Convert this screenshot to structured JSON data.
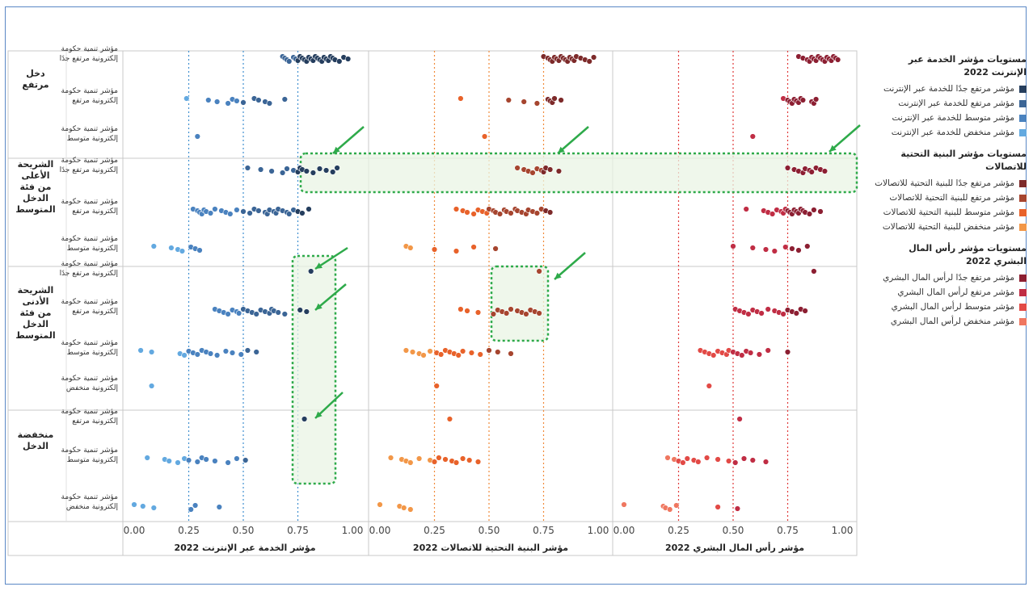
{
  "chart_data": {
    "type": "scatter",
    "x_ticks": [
      "0.00",
      "0.25",
      "0.50",
      "0.75",
      "1.00"
    ],
    "reference_lines": [
      0.25,
      0.5,
      0.75
    ],
    "panels": [
      {
        "xlabel": "مؤشر الخدمة عبر الإنترنت 2022",
        "legend_group": 0,
        "ref_color": "#3f8fd0"
      },
      {
        "xlabel": "مؤشر البنية التحتية للاتصالات 2022",
        "legend_group": 1,
        "ref_color": "#f08a3a"
      },
      {
        "xlabel": "مؤشر رأس المال البشري 2022",
        "legend_group": 2,
        "ref_color": "#e03a3a"
      }
    ],
    "row_groups": [
      {
        "label_lines": [
          "دخل",
          "مرتفع"
        ],
        "rows": [
          {
            "label_lines": [
              "مؤشر تنمية حكومة",
              "إلكترونية مرتفع جدًا"
            ],
            "points": [
              [
                0.68,
                0.69,
                0.7,
                0.71,
                0.73,
                0.74,
                0.75,
                0.76,
                0.77,
                0.78,
                0.79,
                0.8,
                0.81,
                0.82,
                0.83,
                0.84,
                0.85,
                0.86,
                0.87,
                0.88,
                0.89,
                0.9,
                0.91,
                0.92,
                0.94,
                0.96,
                0.98
              ],
              [
                0.75,
                0.77,
                0.78,
                0.79,
                0.8,
                0.81,
                0.82,
                0.83,
                0.84,
                0.85,
                0.86,
                0.87,
                0.88,
                0.89,
                0.9,
                0.92,
                0.94,
                0.96,
                0.98
              ],
              [
                0.8,
                0.82,
                0.84,
                0.85,
                0.86,
                0.87,
                0.88,
                0.89,
                0.9,
                0.91,
                0.92,
                0.93,
                0.94,
                0.95,
                0.96,
                0.97,
                0.98
              ]
            ]
          },
          {
            "label_lines": [
              "مؤشر تنمية حكومة",
              "إلكترونية مرتفع"
            ],
            "points": [
              [
                0.24,
                0.34,
                0.38,
                0.43,
                0.45,
                0.47,
                0.5,
                0.55,
                0.57,
                0.6,
                0.62,
                0.69
              ],
              [
                0.37,
                0.59,
                0.66,
                0.72,
                0.77,
                0.78,
                0.79,
                0.8,
                0.83
              ],
              [
                0.73,
                0.75,
                0.76,
                0.77,
                0.78,
                0.79,
                0.8,
                0.81,
                0.82,
                0.86,
                0.87,
                0.88
              ]
            ]
          },
          {
            "label_lines": [
              "مؤشر تنمية حكومة",
              "إلكترونية متوسط"
            ],
            "points": [
              [
                0.29
              ],
              [
                0.48
              ],
              [
                0.59
              ]
            ]
          }
        ]
      },
      {
        "label_lines": [
          "الشريحة",
          "الأعلى",
          "من فئة",
          "الدخل",
          "المتوسط"
        ],
        "rows": [
          {
            "label_lines": [
              "مؤشر تنمية حكومة",
              "إلكترونية مرتفع جدًا"
            ],
            "points": [
              [
                0.52,
                0.58,
                0.63,
                0.68,
                0.7,
                0.73,
                0.75,
                0.76,
                0.77,
                0.79,
                0.82,
                0.85,
                0.88,
                0.91,
                0.93
              ],
              [
                0.63,
                0.66,
                0.68,
                0.7,
                0.72,
                0.74,
                0.75,
                0.76,
                0.78,
                0.82
              ],
              [
                0.75,
                0.78,
                0.8,
                0.82,
                0.83,
                0.85,
                0.86,
                0.88,
                0.9,
                0.92
              ]
            ]
          },
          {
            "label_lines": [
              "مؤشر تنمية حكومة",
              "إلكترونية مرتفع"
            ],
            "points": [
              [
                0.27,
                0.29,
                0.3,
                0.31,
                0.32,
                0.33,
                0.35,
                0.37,
                0.4,
                0.42,
                0.44,
                0.47,
                0.5,
                0.53,
                0.55,
                0.57,
                0.6,
                0.61,
                0.62,
                0.64,
                0.65,
                0.66,
                0.68,
                0.7,
                0.71,
                0.73,
                0.75,
                0.77,
                0.8
              ],
              [
                0.35,
                0.38,
                0.4,
                0.43,
                0.45,
                0.47,
                0.49,
                0.5,
                0.52,
                0.53,
                0.55,
                0.57,
                0.58,
                0.6,
                0.62,
                0.63,
                0.65,
                0.67,
                0.68,
                0.7,
                0.72,
                0.74,
                0.76,
                0.78
              ],
              [
                0.56,
                0.64,
                0.66,
                0.68,
                0.7,
                0.72,
                0.73,
                0.74,
                0.75,
                0.76,
                0.77,
                0.78,
                0.79,
                0.8,
                0.81,
                0.82,
                0.83,
                0.85,
                0.87,
                0.9
              ]
            ]
          },
          {
            "label_lines": [
              "مؤشر تنمية حكومة",
              "إلكترونية متوسط"
            ],
            "points": [
              [
                0.09,
                0.17,
                0.2,
                0.22,
                0.26,
                0.28,
                0.3
              ],
              [
                0.12,
                0.14,
                0.25,
                0.35,
                0.43,
                0.53
              ],
              [
                0.5,
                0.59,
                0.65,
                0.69,
                0.74,
                0.77,
                0.8,
                0.84
              ]
            ]
          }
        ]
      },
      {
        "label_lines": [
          "الشريحة",
          "الأدنى",
          "من فئة",
          "الدخل",
          "المتوسط"
        ],
        "rows": [
          {
            "label_lines": [
              "مؤشر تنمية حكومة",
              "إلكترونية مرتفع جدًا"
            ],
            "points": [
              [
                0.81
              ],
              [
                0.73
              ],
              [
                0.87
              ]
            ]
          },
          {
            "label_lines": [
              "مؤشر تنمية حكومة",
              "إلكترونية مرتفع"
            ],
            "points": [
              [
                0.37,
                0.39,
                0.41,
                0.43,
                0.45,
                0.47,
                0.48,
                0.5,
                0.52,
                0.54,
                0.56,
                0.58,
                0.6,
                0.62,
                0.63,
                0.64,
                0.66,
                0.69,
                0.76,
                0.79
              ],
              [
                0.37,
                0.4,
                0.45,
                0.52,
                0.54,
                0.56,
                0.58,
                0.6,
                0.63,
                0.65,
                0.67,
                0.69,
                0.71,
                0.73
              ],
              [
                0.51,
                0.53,
                0.55,
                0.57,
                0.59,
                0.61,
                0.63,
                0.66,
                0.69,
                0.71,
                0.73,
                0.75,
                0.77,
                0.79,
                0.81,
                0.83
              ]
            ]
          },
          {
            "label_lines": [
              "مؤشر تنمية حكومة",
              "إلكترونية متوسط"
            ],
            "points": [
              [
                0.03,
                0.08,
                0.21,
                0.23,
                0.25,
                0.27,
                0.29,
                0.31,
                0.33,
                0.35,
                0.38,
                0.42,
                0.45,
                0.49,
                0.52,
                0.56
              ],
              [
                0.12,
                0.15,
                0.18,
                0.2,
                0.23,
                0.26,
                0.28,
                0.3,
                0.32,
                0.34,
                0.36,
                0.38,
                0.42,
                0.46,
                0.5,
                0.54,
                0.6
              ],
              [
                0.35,
                0.37,
                0.39,
                0.41,
                0.43,
                0.45,
                0.47,
                0.48,
                0.5,
                0.52,
                0.54,
                0.56,
                0.58,
                0.62,
                0.66,
                0.75
              ]
            ]
          },
          {
            "label_lines": [
              "مؤشر تنمية حكومة",
              "إلكترونية منخفض"
            ],
            "points": [
              [
                0.08
              ],
              [
                0.26
              ],
              [
                0.39
              ]
            ]
          }
        ]
      },
      {
        "label_lines": [
          "منخفضة",
          "الدخل"
        ],
        "rows": [
          {
            "label_lines": [
              "مؤشر تنمية حكومة",
              "إلكترونية مرتفع"
            ],
            "points": [
              [
                0.78
              ],
              [
                0.32
              ],
              [
                0.53
              ]
            ]
          },
          {
            "label_lines": [
              "مؤشر تنمية حكومة",
              "إلكترونية متوسط"
            ],
            "points": [
              [
                0.06,
                0.14,
                0.16,
                0.2,
                0.23,
                0.25,
                0.29,
                0.31,
                0.33,
                0.37,
                0.43,
                0.47,
                0.51
              ],
              [
                0.05,
                0.1,
                0.12,
                0.14,
                0.18,
                0.23,
                0.25,
                0.27,
                0.3,
                0.33,
                0.35,
                0.38,
                0.41,
                0.45
              ],
              [
                0.2,
                0.23,
                0.25,
                0.27,
                0.29,
                0.32,
                0.34,
                0.38,
                0.43,
                0.48,
                0.51,
                0.55,
                0.59,
                0.65
              ]
            ]
          },
          {
            "label_lines": [
              "مؤشر تنمية حكومة",
              "إلكترونية منخفض"
            ],
            "points": [
              [
                0.0,
                0.04,
                0.09,
                0.26,
                0.28,
                0.39
              ],
              [
                0.0,
                0.09,
                0.11,
                0.14
              ],
              [
                0.0,
                0.18,
                0.19,
                0.21,
                0.24,
                0.43,
                0.52
              ]
            ]
          }
        ]
      }
    ],
    "category_colors": [
      [
        "#253e5e",
        "#3b6596",
        "#4a82bf",
        "#63a9e0"
      ],
      [
        "#7d2a2a",
        "#a6452f",
        "#e8622a",
        "#f29748"
      ],
      [
        "#8c1f32",
        "#c02d44",
        "#e24a46",
        "#ef7760"
      ]
    ],
    "legend": [
      {
        "title": "مستويات مؤشر الخدمة عبر الإنترنت 2022",
        "items": [
          "مؤشر مرتفع جدًا للخدمة عبر الإنترنت",
          "مؤشر مرتفع للخدمة عبر الإنترنت",
          "مؤشر متوسط للخدمة عبر الإنترنت",
          "مؤشر منخفض للخدمة عبر الإنترنت"
        ]
      },
      {
        "title": "مستويات مؤشر البنية التحتية للاتصالات",
        "items": [
          "مؤشر مرتفع جدًا للبنية التحتية للاتصالات",
          "مؤشر مرتفع للبنية التحتية للاتصالات",
          "مؤشر متوسط للبنية التحتية للاتصالات",
          "مؤشر منخفض للبنية التحتية للاتصالات"
        ]
      },
      {
        "title": "مستويات مؤشر رأس المال البشري 2022",
        "items": [
          "مؤشر مرتفع جدًا لرأس المال البشري",
          "مؤشر مرتفع لرأس المال البشري",
          "مؤشر متوسط لرأس المال البشري",
          "مؤشر منخفض لرأس المال البشري"
        ]
      }
    ],
    "highlight_color": "#2eaa4a"
  }
}
